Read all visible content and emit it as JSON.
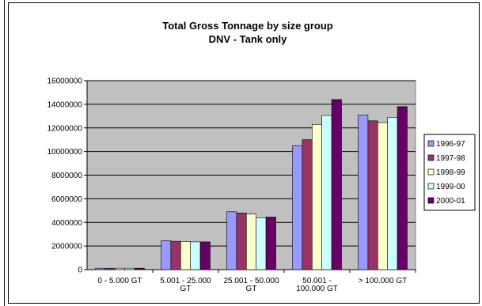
{
  "chart_data": {
    "type": "bar",
    "title": "Total Gross Tonnage by size group",
    "subtitle": "DNV - Tank only",
    "xlabel": "",
    "ylabel": "",
    "ylim": [
      0,
      16000000
    ],
    "yticks": [
      0,
      2000000,
      4000000,
      6000000,
      8000000,
      10000000,
      12000000,
      14000000,
      16000000
    ],
    "ytick_labels": [
      "0",
      "2000000",
      "4000000",
      "6000000",
      "8000000",
      "10000000",
      "12000000",
      "14000000",
      "16000000"
    ],
    "grid": true,
    "legend_position": "right",
    "categories": [
      [
        "0 -   5.000 GT"
      ],
      [
        "5.001 - 25.000",
        "GT"
      ],
      [
        "25.001 - 50.000",
        "GT"
      ],
      [
        "50.001 -",
        "100.000 GT"
      ],
      [
        "> 100.000 GT"
      ]
    ],
    "series": [
      {
        "name": "1996-97",
        "color": "#9999ff",
        "values": [
          120000,
          2450000,
          4900000,
          10500000,
          13100000
        ]
      },
      {
        "name": "1997-98",
        "color": "#993366",
        "values": [
          120000,
          2400000,
          4800000,
          11000000,
          12600000
        ]
      },
      {
        "name": "1998-99",
        "color": "#ffffcc",
        "values": [
          120000,
          2380000,
          4700000,
          12300000,
          12450000
        ]
      },
      {
        "name": "1999-00",
        "color": "#ccffff",
        "values": [
          120000,
          2350000,
          4400000,
          13050000,
          12900000
        ]
      },
      {
        "name": "2000-01",
        "color": "#660066",
        "values": [
          120000,
          2350000,
          4450000,
          14400000,
          13800000
        ]
      }
    ],
    "plot_background": "#c0c0c0"
  }
}
